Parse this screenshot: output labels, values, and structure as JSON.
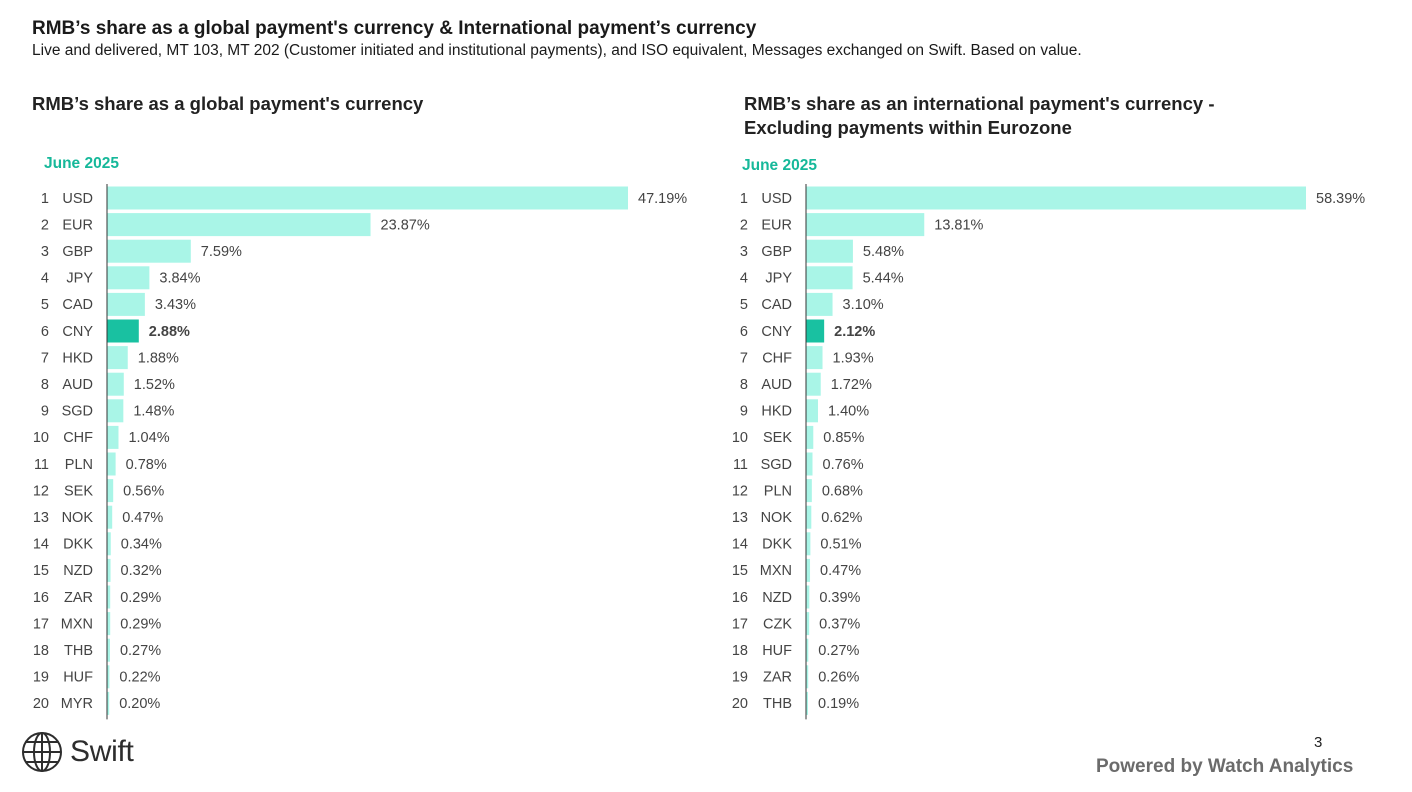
{
  "page": {
    "title": "RMB’s share as a global payment's currency & International payment’s currency",
    "subtitle": "Live and delivered, MT 103, MT 202 (Customer initiated and institutional payments), and ISO equivalent, Messages exchanged on Swift. Based on value.",
    "page_number": "3",
    "footer": "Powered by Watch Analytics",
    "logo_text": "Swift"
  },
  "colors": {
    "bar": "#a9f5e7",
    "bar_highlight": "#19c1a1",
    "period": "#16b89a",
    "text": "#444444",
    "axis": "#333333"
  },
  "chart_data": [
    {
      "type": "bar",
      "orientation": "horizontal",
      "title": "RMB’s share as a global payment's currency",
      "period": "June 2025",
      "highlight": "CNY",
      "unit": "%",
      "ranks": [
        "1",
        "2",
        "3",
        "4",
        "5",
        "6",
        "7",
        "8",
        "9",
        "10",
        "11",
        "12",
        "13",
        "14",
        "15",
        "16",
        "17",
        "18",
        "19",
        "20"
      ],
      "categories": [
        "USD",
        "EUR",
        "GBP",
        "JPY",
        "CAD",
        "CNY",
        "HKD",
        "AUD",
        "SGD",
        "CHF",
        "PLN",
        "SEK",
        "NOK",
        "DKK",
        "NZD",
        "ZAR",
        "MXN",
        "THB",
        "HUF",
        "MYR"
      ],
      "values": [
        47.19,
        23.87,
        7.59,
        3.84,
        3.43,
        2.88,
        1.88,
        1.52,
        1.48,
        1.04,
        0.78,
        0.56,
        0.47,
        0.34,
        0.32,
        0.29,
        0.29,
        0.27,
        0.22,
        0.2
      ],
      "labels": [
        "47.19%",
        "23.87%",
        "7.59%",
        "3.84%",
        "3.43%",
        "2.88%",
        "1.88%",
        "1.52%",
        "1.48%",
        "1.04%",
        "0.78%",
        "0.56%",
        "0.47%",
        "0.34%",
        "0.32%",
        "0.29%",
        "0.29%",
        "0.27%",
        "0.22%",
        "0.20%"
      ]
    },
    {
      "type": "bar",
      "orientation": "horizontal",
      "title": "RMB’s share as an international payment's currency - Excluding payments within Eurozone",
      "period": "June 2025",
      "highlight": "CNY",
      "unit": "%",
      "ranks": [
        "1",
        "2",
        "3",
        "4",
        "5",
        "6",
        "7",
        "8",
        "9",
        "10",
        "11",
        "12",
        "13",
        "14",
        "15",
        "16",
        "17",
        "18",
        "19",
        "20"
      ],
      "categories": [
        "USD",
        "EUR",
        "GBP",
        "JPY",
        "CAD",
        "CNY",
        "CHF",
        "AUD",
        "HKD",
        "SEK",
        "SGD",
        "PLN",
        "NOK",
        "DKK",
        "MXN",
        "NZD",
        "CZK",
        "HUF",
        "ZAR",
        "THB"
      ],
      "values": [
        58.39,
        13.81,
        5.48,
        5.44,
        3.1,
        2.12,
        1.93,
        1.72,
        1.4,
        0.85,
        0.76,
        0.68,
        0.62,
        0.51,
        0.47,
        0.39,
        0.37,
        0.27,
        0.26,
        0.19
      ],
      "labels": [
        "58.39%",
        "13.81%",
        "5.48%",
        "5.44%",
        "3.10%",
        "2.12%",
        "1.93%",
        "1.72%",
        "1.40%",
        "0.85%",
        "0.76%",
        "0.68%",
        "0.62%",
        "0.51%",
        "0.47%",
        "0.39%",
        "0.37%",
        "0.27%",
        "0.26%",
        "0.19%"
      ]
    }
  ]
}
